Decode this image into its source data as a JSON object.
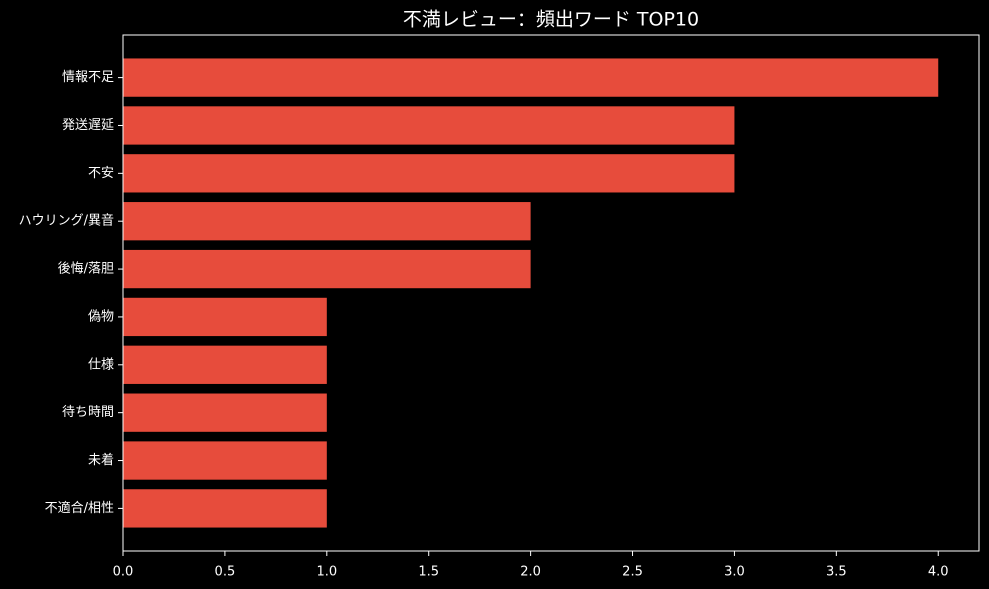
{
  "chart_data": {
    "type": "barh",
    "title": "不満レビュー：頻出ワード TOP10",
    "categories": [
      "情報不足",
      "発送遅延",
      "不安",
      "ハウリング/異音",
      "後悔/落胆",
      "偽物",
      "仕様",
      "待ち時間",
      "未着",
      "不適合/相性"
    ],
    "values": [
      4,
      3,
      3,
      2,
      2,
      1,
      1,
      1,
      1,
      1
    ],
    "color": "#e74c3c",
    "xlim": [
      0,
      4.2
    ],
    "xticks": [
      {
        "value": 0,
        "label": "0.0"
      },
      {
        "value": 0.5,
        "label": "0.5"
      },
      {
        "value": 1,
        "label": "1.0"
      },
      {
        "value": 1.5,
        "label": "1.5"
      },
      {
        "value": 2,
        "label": "2.0"
      },
      {
        "value": 2.5,
        "label": "2.5"
      },
      {
        "value": 3,
        "label": "3.0"
      },
      {
        "value": 3.5,
        "label": "3.5"
      },
      {
        "value": 4,
        "label": "4.0"
      }
    ],
    "grid": false
  }
}
